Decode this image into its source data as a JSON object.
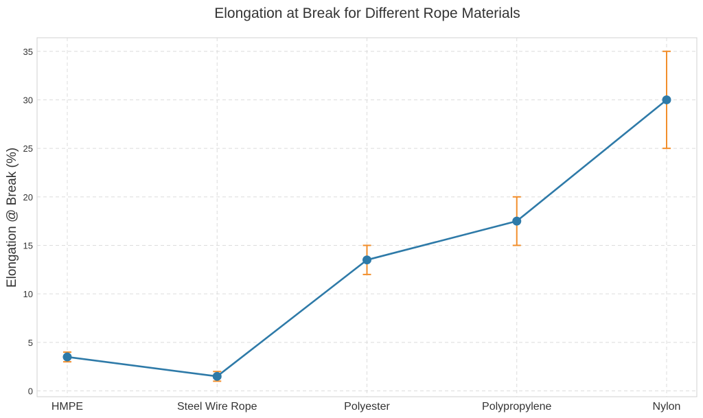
{
  "chart_data": {
    "type": "line",
    "title": "Elongation at Break for Different Rope Materials",
    "xlabel": "",
    "ylabel": "Elongation @ Break (%)",
    "categories": [
      "HMPE",
      "Steel Wire Rope",
      "Polyester",
      "Polypropylene",
      "Nylon"
    ],
    "series": [
      {
        "values": [
          3.5,
          1.5,
          13.5,
          17.5,
          30
        ],
        "error_low": [
          3,
          1,
          12,
          15,
          25
        ],
        "error_high": [
          4,
          2,
          15,
          20,
          35
        ],
        "color": "#2e7aa8",
        "errorbar_color": "#f28e2b"
      }
    ],
    "ylim": [
      -0.6,
      36.4
    ],
    "yticks": [
      0,
      5,
      10,
      15,
      20,
      25,
      30,
      35
    ],
    "grid": true,
    "legend": "none"
  }
}
